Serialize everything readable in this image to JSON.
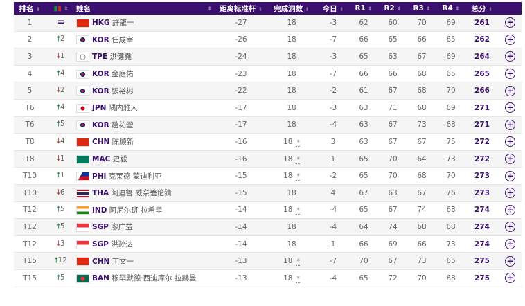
{
  "headers": {
    "rank": "排名",
    "move": "",
    "name": "姓名",
    "to_par": "距离标准杆",
    "thru": "完成洞数",
    "today": "今日",
    "r1": "R1",
    "r2": "R2",
    "r3": "R3",
    "r4": "R4",
    "total": "总分"
  },
  "colors": {
    "header_bg": "#3a0f6e",
    "up": "#1c8a3a",
    "down": "#c0302a"
  },
  "rows": [
    {
      "rank": "1",
      "dir": "eq",
      "move": "=",
      "country": "HKG",
      "player": "許龍一",
      "flag": "hkg",
      "to_par": "-27",
      "thru": "18",
      "star": "",
      "today": "-3",
      "r1": "62",
      "r2": "60",
      "r3": "70",
      "r4": "69",
      "total": "261"
    },
    {
      "rank": "2",
      "dir": "up",
      "move": "2",
      "country": "KOR",
      "player": "任成宰",
      "flag": "kor",
      "to_par": "-26",
      "thru": "18",
      "star": "",
      "today": "-7",
      "r1": "66",
      "r2": "65",
      "r3": "66",
      "r4": "65",
      "total": "262"
    },
    {
      "rank": "3",
      "dir": "dn",
      "move": "1",
      "country": "TPE",
      "player": "洪健堯",
      "flag": "tpe",
      "to_par": "-24",
      "thru": "18",
      "star": "",
      "today": "-3",
      "r1": "65",
      "r2": "63",
      "r3": "67",
      "r4": "69",
      "total": "264"
    },
    {
      "rank": "4",
      "dir": "up",
      "move": "4",
      "country": "KOR",
      "player": "金庭佑",
      "flag": "kor",
      "to_par": "-23",
      "thru": "18",
      "star": "",
      "today": "-7",
      "r1": "66",
      "r2": "66",
      "r3": "68",
      "r4": "65",
      "total": "265"
    },
    {
      "rank": "5",
      "dir": "dn",
      "move": "2",
      "country": "KOR",
      "player": "張裕彬",
      "flag": "kor",
      "to_par": "-22",
      "thru": "18",
      "star": "",
      "today": "-2",
      "r1": "61",
      "r2": "67",
      "r3": "68",
      "r4": "70",
      "total": "266"
    },
    {
      "rank": "T6",
      "dir": "up",
      "move": "4",
      "country": "JPN",
      "player": "隅内雅人",
      "flag": "jpn",
      "to_par": "-17",
      "thru": "18",
      "star": "",
      "today": "-3",
      "r1": "63",
      "r2": "71",
      "r3": "68",
      "r4": "69",
      "total": "271"
    },
    {
      "rank": "T6",
      "dir": "up",
      "move": "5",
      "country": "KOR",
      "player": "趙祐瑩",
      "flag": "kor",
      "to_par": "-17",
      "thru": "18",
      "star": "",
      "today": "-4",
      "r1": "63",
      "r2": "67",
      "r3": "73",
      "r4": "68",
      "total": "271"
    },
    {
      "rank": "T8",
      "dir": "dn",
      "move": "4",
      "country": "CHN",
      "player": "陈顾新",
      "flag": "chn",
      "to_par": "-16",
      "thru": "18",
      "star": "*",
      "today": "3",
      "r1": "63",
      "r2": "67",
      "r3": "67",
      "r4": "75",
      "total": "272"
    },
    {
      "rank": "T8",
      "dir": "dn",
      "move": "1",
      "country": "MAC",
      "player": "史毅",
      "flag": "mac",
      "to_par": "-16",
      "thru": "18",
      "star": "*",
      "today": "1",
      "r1": "65",
      "r2": "70",
      "r3": "64",
      "r4": "73",
      "total": "272"
    },
    {
      "rank": "T10",
      "dir": "up",
      "move": "1",
      "country": "PHI",
      "player": "克莱德 蒙迪利亚",
      "flag": "phi",
      "to_par": "-15",
      "thru": "18",
      "star": "*",
      "today": "-2",
      "r1": "65",
      "r2": "70",
      "r3": "68",
      "r4": "70",
      "total": "273"
    },
    {
      "rank": "T10",
      "dir": "dn",
      "move": "6",
      "country": "THA",
      "player": "阿迪鲁 威奈差伦猜",
      "flag": "tha",
      "to_par": "-15",
      "thru": "18",
      "star": "",
      "today": "4",
      "r1": "67",
      "r2": "63",
      "r3": "67",
      "r4": "76",
      "total": "273"
    },
    {
      "rank": "T12",
      "dir": "up",
      "move": "5",
      "country": "IND",
      "player": "阿尼尔班 拉希里",
      "flag": "ind",
      "to_par": "-14",
      "thru": "18",
      "star": "*",
      "today": "-4",
      "r1": "65",
      "r2": "67",
      "r3": "74",
      "r4": "68",
      "total": "274"
    },
    {
      "rank": "T12",
      "dir": "up",
      "move": "5",
      "country": "SGP",
      "player": "廖广益",
      "flag": "sgp",
      "to_par": "-14",
      "thru": "18",
      "star": "",
      "today": "-4",
      "r1": "64",
      "r2": "74",
      "r3": "68",
      "r4": "68",
      "total": "274"
    },
    {
      "rank": "T12",
      "dir": "dn",
      "move": "3",
      "country": "SGP",
      "player": "洪孙达",
      "flag": "sgp",
      "to_par": "-14",
      "thru": "18",
      "star": "",
      "today": "1",
      "r1": "66",
      "r2": "69",
      "r3": "66",
      "r4": "73",
      "total": "274"
    },
    {
      "rank": "T15",
      "dir": "up",
      "move": "12",
      "country": "CHN",
      "player": "丁文一",
      "flag": "chn",
      "to_par": "-13",
      "thru": "18",
      "star": "*",
      "today": "-7",
      "r1": "70",
      "r2": "67",
      "r3": "73",
      "r4": "65",
      "total": "275"
    },
    {
      "rank": "T15",
      "dir": "up",
      "move": "5",
      "country": "BAN",
      "player": "穆罕默德·西迪库尔 拉赫曼",
      "flag": "ban",
      "to_par": "-13",
      "thru": "18",
      "star": "*",
      "today": "-4",
      "r1": "65",
      "r2": "72",
      "r3": "70",
      "r4": "68",
      "total": "275"
    }
  ]
}
